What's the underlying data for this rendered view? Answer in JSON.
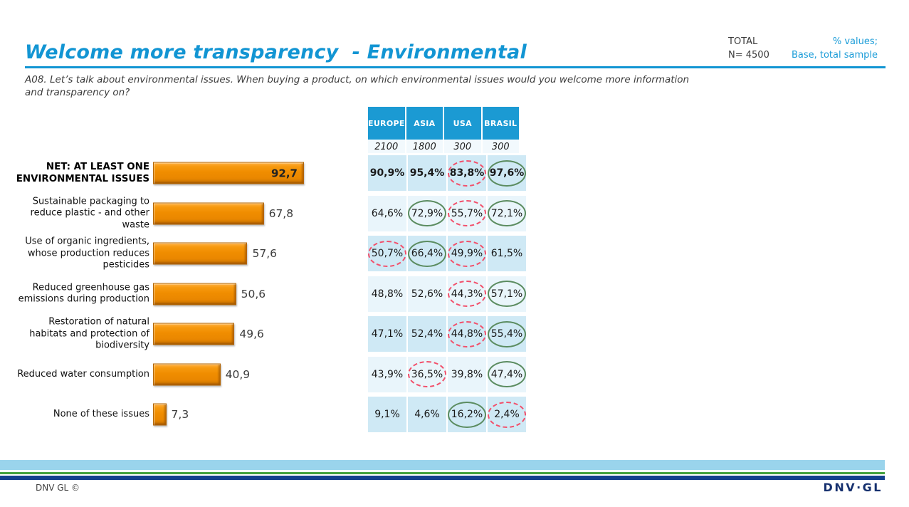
{
  "header": {
    "title": "Welcome more transparency  - Environmental",
    "total_label": "TOTAL",
    "total_n": "N= 4500",
    "note_line1": "% values;",
    "note_line2": "Base, total sample",
    "question_line1": "A08. Let’s talk about environmental issues. When buying a product, on which environmental issues would you welcome more information",
    "question_line2": "and transparency on?"
  },
  "chart_data": {
    "type": "bar",
    "orientation": "horizontal",
    "title": "",
    "xlabel": "",
    "ylabel": "",
    "xlim": [
      0,
      100
    ],
    "bar_color": "#F18C00",
    "categories": [
      "NET: AT LEAST ONE ENVIRONMENTAL ISSUES",
      "Sustainable packaging to reduce plastic - and other waste",
      "Use of organic ingredients, whose production reduces pesticides",
      "Reduced greenhouse gas emissions during production",
      "Restoration of natural habitats and protection of biodiversity",
      "Reduced water consumption",
      "None of these issues"
    ],
    "values": [
      92.7,
      67.8,
      57.6,
      50.6,
      49.6,
      40.9,
      7.3
    ],
    "value_labels": [
      "92,7",
      "67,8",
      "57,6",
      "50,6",
      "49,6",
      "40,9",
      "7,3"
    ]
  },
  "table": {
    "columns": [
      "EUROPE",
      "ASIA",
      "USA",
      "BRASIL"
    ],
    "bases": [
      "2100",
      "1800",
      "300",
      "300"
    ],
    "rows": [
      {
        "emphasis": true,
        "cells": [
          {
            "v": "90,9%"
          },
          {
            "v": "95,4%"
          },
          {
            "v": "83,8%",
            "mark": "low"
          },
          {
            "v": "97,6%",
            "mark": "high"
          }
        ]
      },
      {
        "emphasis": false,
        "cells": [
          {
            "v": "64,6%"
          },
          {
            "v": "72,9%",
            "mark": "high"
          },
          {
            "v": "55,7%",
            "mark": "low"
          },
          {
            "v": "72,1%",
            "mark": "high"
          }
        ]
      },
      {
        "emphasis": false,
        "cells": [
          {
            "v": "50,7%",
            "mark": "low"
          },
          {
            "v": "66,4%",
            "mark": "high"
          },
          {
            "v": "49,9%",
            "mark": "low"
          },
          {
            "v": "61,5%"
          }
        ]
      },
      {
        "emphasis": false,
        "cells": [
          {
            "v": "48,8%"
          },
          {
            "v": "52,6%"
          },
          {
            "v": "44,3%",
            "mark": "low"
          },
          {
            "v": "57,1%",
            "mark": "high"
          }
        ]
      },
      {
        "emphasis": false,
        "cells": [
          {
            "v": "47,1%"
          },
          {
            "v": "52,4%"
          },
          {
            "v": "44,8%",
            "mark": "low"
          },
          {
            "v": "55,4%",
            "mark": "high"
          }
        ]
      },
      {
        "emphasis": false,
        "cells": [
          {
            "v": "43,9%"
          },
          {
            "v": "36,5%",
            "mark": "low"
          },
          {
            "v": "39,8%"
          },
          {
            "v": "47,4%",
            "mark": "high"
          }
        ]
      },
      {
        "emphasis": false,
        "cells": [
          {
            "v": "9,1%"
          },
          {
            "v": "4,6%"
          },
          {
            "v": "16,2%",
            "mark": "high"
          },
          {
            "v": "2,4%",
            "mark": "low"
          }
        ]
      }
    ],
    "mark_legend": {
      "high": "green-solid-circle",
      "low": "red-dashed-circle"
    }
  },
  "footer": {
    "copyright": "DNV GL ©",
    "logo": "DNV·GL"
  },
  "colors": {
    "title_blue": "#1295d3",
    "header_blue": "#1b9ad3",
    "row_dark": "#cfe9f5",
    "row_light": "#e9f5fb",
    "bar_orange": "#f18c00",
    "circle_green": "#5b8c60",
    "circle_red": "#f2506b",
    "stripe_lightblue": "#9ad4ec",
    "stripe_green": "#44a13d",
    "stripe_navy": "#14408e",
    "logo_navy": "#16306e"
  }
}
